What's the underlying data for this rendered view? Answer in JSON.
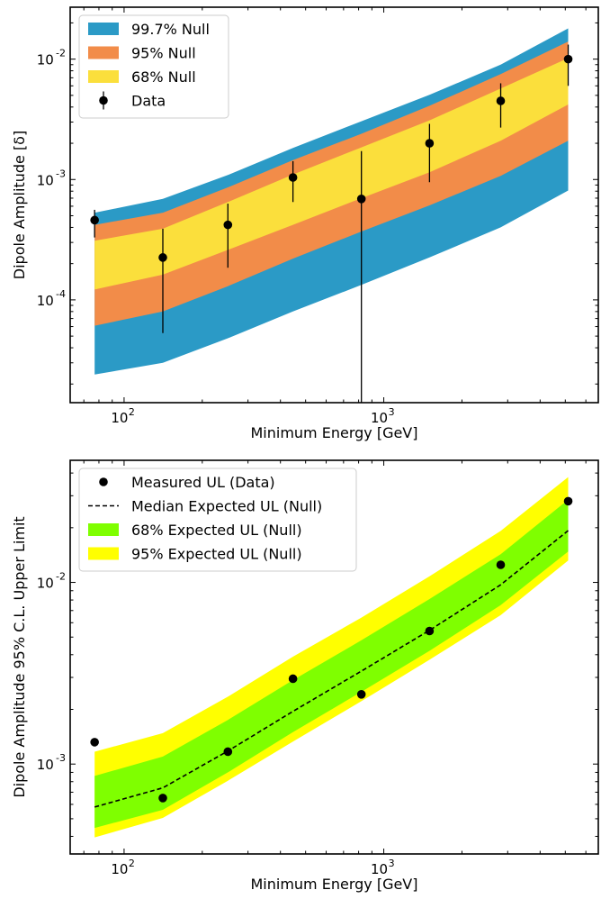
{
  "chart_data": [
    {
      "type": "area",
      "xlabel": "Minimum Energy [GeV]",
      "ylabel": "Dipole Amplitude [δ]",
      "xscale": "log",
      "yscale": "log",
      "xlim": [
        62,
        6700
      ],
      "ylim": [
        1.4e-05,
        0.027
      ],
      "grid": false,
      "legend_position": "top-left",
      "x": [
        77,
        141,
        251,
        447,
        820,
        1500,
        2820,
        5130
      ],
      "x_ticks": [
        {
          "base": "10",
          "exp": "2",
          "value": 100
        },
        {
          "base": "10",
          "exp": "3",
          "value": 1000
        }
      ],
      "y_ticks": [
        {
          "base": "10",
          "exp": "-4",
          "value": 0.0001
        },
        {
          "base": "10",
          "exp": "-3",
          "value": 0.001
        },
        {
          "base": "10",
          "exp": "-2",
          "value": 0.01
        }
      ],
      "bands": [
        {
          "name": "99.7% Null",
          "color": "#2b9ac6",
          "lower": [
            2.4e-05,
            3e-05,
            4.8e-05,
            8e-05,
            0.000133,
            0.000225,
            0.0004,
            0.00081
          ],
          "upper": [
            0.00053,
            0.00069,
            0.00109,
            0.00183,
            0.00305,
            0.00505,
            0.009,
            0.018
          ]
        },
        {
          "name": "95% Null",
          "color": "#f28c49",
          "lower": [
            6.1e-05,
            8e-05,
            0.00013,
            0.00022,
            0.00037,
            0.00061,
            0.00107,
            0.0021
          ],
          "upper": [
            0.00042,
            0.00053,
            0.00086,
            0.00145,
            0.0024,
            0.0041,
            0.0075,
            0.014
          ]
        },
        {
          "name": "68% Null",
          "color": "#fbdf3c",
          "lower": [
            0.000122,
            0.000162,
            0.00026,
            0.00042,
            0.0007,
            0.00115,
            0.0021,
            0.0042
          ],
          "upper": [
            0.00031,
            0.00039,
            0.00065,
            0.0011,
            0.00185,
            0.0031,
            0.0057,
            0.0102
          ]
        }
      ],
      "data_series": {
        "name": "Data",
        "y": [
          0.00046,
          0.000225,
          0.00042,
          0.00104,
          0.00069,
          0.002,
          0.0045,
          0.01
        ],
        "err_low": [
          0.00033,
          5.3e-05,
          0.000185,
          0.00065,
          1.3e-05,
          0.00095,
          0.0027,
          0.006
        ],
        "err_high": [
          0.00056,
          0.00039,
          0.00063,
          0.00142,
          0.00172,
          0.0029,
          0.0063,
          0.0132
        ]
      }
    },
    {
      "type": "area",
      "xlabel": "Minimum Energy [GeV]",
      "ylabel": "Dipole Amplitude 95% C.L. Upper Limit",
      "xscale": "log",
      "yscale": "log",
      "xlim": [
        62,
        6700
      ],
      "ylim": [
        0.00032,
        0.047
      ],
      "grid": false,
      "legend_position": "top-left",
      "x": [
        77,
        141,
        251,
        447,
        820,
        1500,
        2820,
        5130
      ],
      "x_ticks": [
        {
          "base": "10",
          "exp": "2",
          "value": 100
        },
        {
          "base": "10",
          "exp": "3",
          "value": 1000
        }
      ],
      "y_ticks": [
        {
          "base": "10",
          "exp": "-3",
          "value": 0.001
        },
        {
          "base": "10",
          "exp": "-2",
          "value": 0.01
        }
      ],
      "bands": [
        {
          "name": "95% Expected UL (Null)",
          "color": "#ffff00",
          "lower": [
            0.000395,
            0.000505,
            0.00081,
            0.00133,
            0.00222,
            0.00375,
            0.0066,
            0.0132
          ],
          "upper": [
            0.00117,
            0.00148,
            0.00235,
            0.0039,
            0.0064,
            0.0108,
            0.0192,
            0.038
          ]
        },
        {
          "name": "68% Expected UL (Null)",
          "color": "#7fff00",
          "lower": [
            0.000445,
            0.00056,
            0.0009,
            0.0015,
            0.0025,
            0.0042,
            0.0075,
            0.0148
          ],
          "upper": [
            0.00086,
            0.0011,
            0.00175,
            0.0029,
            0.0048,
            0.0081,
            0.0143,
            0.0285
          ]
        }
      ],
      "median_series": {
        "name": "Median Expected UL (Null)",
        "y": [
          0.00058,
          0.00074,
          0.00118,
          0.00195,
          0.00325,
          0.00545,
          0.0097,
          0.0193
        ]
      },
      "data_series": {
        "name": "Measured UL (Data)",
        "y": [
          0.00132,
          0.00065,
          0.00117,
          0.00295,
          0.00242,
          0.0054,
          0.0125,
          0.028
        ]
      }
    }
  ]
}
